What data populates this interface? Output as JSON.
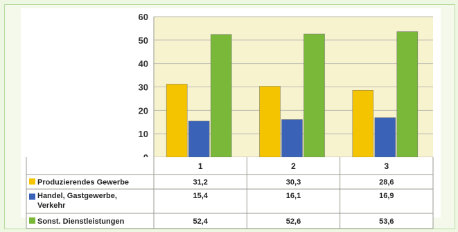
{
  "chart_data": {
    "type": "bar",
    "categories": [
      "1",
      "2",
      "3"
    ],
    "series": [
      {
        "name": "Produzierendes Gewerbe",
        "values": [
          31.2,
          30.3,
          28.6
        ],
        "labels": [
          "31,2",
          "30,3",
          "28,6"
        ],
        "color": "#f5c400"
      },
      {
        "name": "Handel, Gastgewerbe, Verkehr",
        "name_lines": [
          "Handel, Gastgewerbe,",
          "Verkehr"
        ],
        "values": [
          15.4,
          16.1,
          16.9
        ],
        "labels": [
          "15,4",
          "16,1",
          "16,9"
        ],
        "color": "#3a63b8"
      },
      {
        "name": "Sonst. Dienstleistungen",
        "values": [
          52.4,
          52.6,
          53.6
        ],
        "labels": [
          "52,4",
          "52,6",
          "53,6"
        ],
        "color": "#7ab83a"
      }
    ],
    "ylim": [
      0,
      60
    ],
    "yticks": [
      0,
      10,
      20,
      30,
      40,
      50,
      60
    ],
    "grid": true,
    "legend": "data-table",
    "plot_background": "#f7f3cf"
  }
}
